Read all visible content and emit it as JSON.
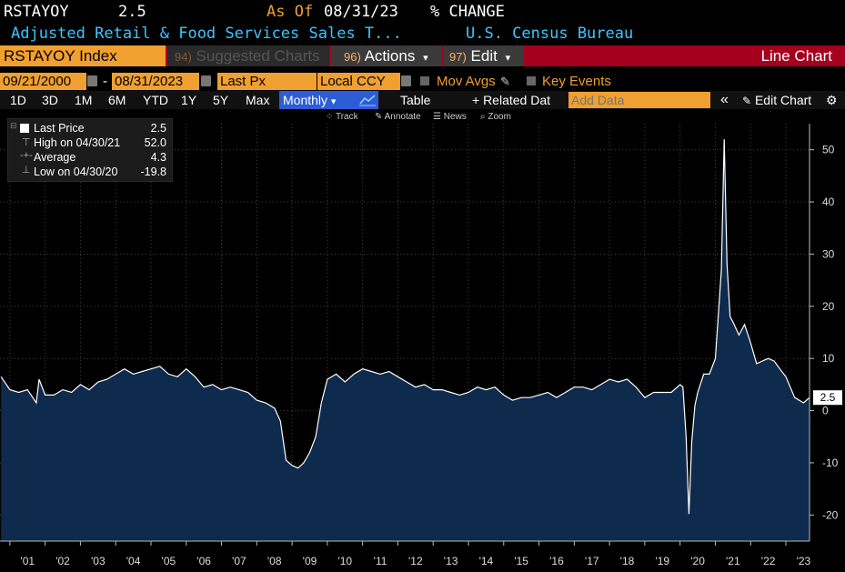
{
  "header": {
    "ticker": "RSTAYOY",
    "last_value": "2.5",
    "as_of_label": "As Of",
    "as_of_date": "08/31/23",
    "unit": "% CHANGE",
    "description": "Adjusted Retail & Food Services Sales T...",
    "source": "U.S. Census Bureau"
  },
  "toolbar": {
    "security": "RSTAYOY Index",
    "suggested_num": "94)",
    "suggested_label": "Suggested Charts",
    "actions_num": "96)",
    "actions_label": "Actions",
    "edit_num": "97)",
    "edit_label": "Edit",
    "chart_type": "Line Chart",
    "dropdown_glyph": "▾"
  },
  "params": {
    "start_date": "09/21/2000",
    "dash": "-",
    "end_date": "08/31/2023",
    "price_field": "Last Px",
    "currency": "Local CCY",
    "mov_avgs": "Mov Avgs",
    "key_events": "Key Events"
  },
  "periods": {
    "items": [
      "1D",
      "3D",
      "1M",
      "6M",
      "YTD",
      "1Y",
      "5Y",
      "Max"
    ],
    "frequency": "Monthly",
    "table": "Table",
    "related": "+ Related Dat",
    "add_data_placeholder": "Add Data",
    "collapse": "«",
    "edit_chart": "Edit Chart"
  },
  "mini_toolbar": {
    "track": "Track",
    "annotate": "Annotate",
    "news": "News",
    "zoom": "Zoom"
  },
  "legend": {
    "items": [
      {
        "label": "Last Price",
        "value": "2.5"
      },
      {
        "label": "High on 04/30/21",
        "value": "52.0"
      },
      {
        "label": "Average",
        "value": "4.3"
      },
      {
        "label": "Low on 04/30/20",
        "value": "-19.8"
      }
    ]
  },
  "colors": {
    "accent": "#f0a030",
    "toolbar_red": "#a5001e",
    "header_cyan": "#3fc4ff",
    "area_fill": "#0e2a4c",
    "line": "#ffffff"
  },
  "chart_data": {
    "type": "area",
    "title": "",
    "xlabel": "",
    "ylabel": "",
    "ylim": [
      -25,
      55
    ],
    "yticks": [
      -20,
      -10,
      0,
      10,
      20,
      30,
      40,
      50
    ],
    "xlim": [
      2000.72,
      2023.67
    ],
    "xtick_labels": [
      "'01",
      "'02",
      "'03",
      "'04",
      "'05",
      "'06",
      "'07",
      "'08",
      "'09",
      "'10",
      "'11",
      "'12",
      "'13",
      "'14",
      "'15",
      "'16",
      "'17",
      "'18",
      "'19",
      "'20",
      "'21",
      "'22",
      "'23"
    ],
    "xtick_years": [
      2001,
      2002,
      2003,
      2004,
      2005,
      2006,
      2007,
      2008,
      2009,
      2010,
      2011,
      2012,
      2013,
      2014,
      2015,
      2016,
      2017,
      2018,
      2019,
      2020,
      2021,
      2022,
      2023
    ],
    "last_value_label": "2.5",
    "grid": true,
    "series": [
      {
        "x": [
          2000.75,
          2001.0,
          2001.25,
          2001.5,
          2001.75,
          2001.83,
          2002.0,
          2002.25,
          2002.5,
          2002.75,
          2003.0,
          2003.25,
          2003.5,
          2003.75,
          2004.0,
          2004.25,
          2004.5,
          2004.75,
          2005.0,
          2005.25,
          2005.5,
          2005.75,
          2006.0,
          2006.25,
          2006.5,
          2006.75,
          2007.0,
          2007.25,
          2007.5,
          2007.75,
          2008.0,
          2008.25,
          2008.5,
          2008.67,
          2008.83,
          2009.0,
          2009.17,
          2009.33,
          2009.5,
          2009.67,
          2009.83,
          2010.0,
          2010.25,
          2010.5,
          2010.75,
          2011.0,
          2011.25,
          2011.5,
          2011.75,
          2012.0,
          2012.25,
          2012.5,
          2012.75,
          2013.0,
          2013.25,
          2013.5,
          2013.75,
          2014.0,
          2014.25,
          2014.5,
          2014.75,
          2015.0,
          2015.25,
          2015.5,
          2015.75,
          2016.0,
          2016.25,
          2016.5,
          2016.75,
          2017.0,
          2017.25,
          2017.5,
          2017.75,
          2018.0,
          2018.25,
          2018.5,
          2018.75,
          2019.0,
          2019.25,
          2019.5,
          2019.75,
          2020.0,
          2020.08,
          2020.17,
          2020.25,
          2020.33,
          2020.42,
          2020.5,
          2020.67,
          2020.83,
          2021.0,
          2021.17,
          2021.25,
          2021.33,
          2021.42,
          2021.5,
          2021.67,
          2021.83,
          2022.0,
          2022.17,
          2022.33,
          2022.5,
          2022.67,
          2022.83,
          2023.0,
          2023.25,
          2023.5,
          2023.67
        ],
        "y": [
          6.5,
          4.0,
          3.5,
          4.0,
          1.5,
          6.0,
          3.0,
          3.0,
          4.0,
          3.5,
          5.0,
          4.0,
          5.5,
          6.0,
          7.0,
          8.0,
          7.0,
          7.5,
          8.0,
          8.5,
          7.0,
          6.5,
          8.0,
          6.5,
          4.5,
          5.0,
          4.0,
          4.5,
          4.0,
          3.5,
          2.0,
          1.5,
          0.5,
          -2.0,
          -9.5,
          -10.5,
          -11.0,
          -10.0,
          -8.0,
          -5.0,
          1.5,
          6.0,
          7.0,
          5.5,
          7.0,
          8.0,
          7.5,
          7.0,
          7.5,
          6.5,
          5.5,
          4.5,
          5.0,
          4.0,
          4.0,
          3.5,
          3.0,
          3.5,
          4.5,
          4.0,
          4.5,
          3.0,
          2.0,
          2.5,
          2.5,
          3.0,
          3.5,
          2.5,
          3.5,
          4.5,
          4.5,
          4.0,
          5.0,
          6.0,
          5.5,
          6.0,
          4.5,
          2.5,
          3.5,
          3.5,
          3.5,
          5.0,
          4.5,
          -5.0,
          -19.8,
          -6.0,
          1.0,
          3.5,
          7.0,
          7.0,
          10.0,
          27.0,
          52.0,
          28.0,
          18.0,
          17.0,
          14.5,
          16.5,
          13.0,
          9.0,
          9.5,
          10.0,
          9.5,
          8.0,
          6.5,
          2.5,
          1.5,
          2.5
        ]
      }
    ]
  }
}
